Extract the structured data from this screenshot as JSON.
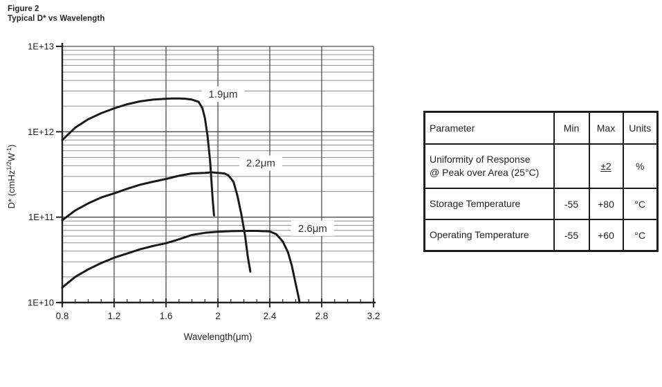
{
  "figure": {
    "title_line1": "Figure 2",
    "title_line2": "Typical D* vs Wavelength"
  },
  "chart_data": {
    "type": "line",
    "title": "Typical D* vs Wavelength",
    "xlabel": "Wavelength(μm)",
    "ylabel": "D* (cmHz^{1/2}W^{-1})",
    "xlim": [
      0.8,
      3.2
    ],
    "x_major_ticks": [
      {
        "v": 0.8,
        "label": "0.8"
      },
      {
        "v": 1.2,
        "label": "1.2"
      },
      {
        "v": 1.6,
        "label": "1.6"
      },
      {
        "v": 2.0,
        "label": "2"
      },
      {
        "v": 2.4,
        "label": "2.4"
      },
      {
        "v": 2.8,
        "label": "2.8"
      },
      {
        "v": 3.2,
        "label": "3.2"
      }
    ],
    "x_minor_step": 0.1,
    "y_scale": "log",
    "ylim_exp": [
      10,
      13
    ],
    "y_decades": [
      {
        "exp": 13,
        "label": "1E+13"
      },
      {
        "exp": 12,
        "label": "1E+12"
      },
      {
        "exp": 11,
        "label": "1E+11"
      },
      {
        "exp": 10,
        "label": "1E+10"
      }
    ],
    "grid": true,
    "legend_position": "inline-labels",
    "series": [
      {
        "name": "1.9μm",
        "points": [
          [
            0.8,
            800000000000.0
          ],
          [
            0.9,
            1120000000000.0
          ],
          [
            1.0,
            1400000000000.0
          ],
          [
            1.1,
            1650000000000.0
          ],
          [
            1.2,
            1880000000000.0
          ],
          [
            1.3,
            2100000000000.0
          ],
          [
            1.4,
            2270000000000.0
          ],
          [
            1.5,
            2380000000000.0
          ],
          [
            1.6,
            2440000000000.0
          ],
          [
            1.65,
            2450000000000.0
          ],
          [
            1.7,
            2450000000000.0
          ],
          [
            1.75,
            2440000000000.0
          ],
          [
            1.8,
            2380000000000.0
          ],
          [
            1.85,
            2250000000000.0
          ],
          [
            1.88,
            1900000000000.0
          ],
          [
            1.9,
            1450000000000.0
          ],
          [
            1.92,
            900000000000.0
          ],
          [
            1.94,
            450000000000.0
          ],
          [
            1.95,
            270000000000.0
          ],
          [
            1.96,
            160000000000.0
          ],
          [
            1.97,
            105000000000.0
          ]
        ]
      },
      {
        "name": "2.2μm",
        "points": [
          [
            0.8,
            92000000000.0
          ],
          [
            0.9,
            120000000000.0
          ],
          [
            1.0,
            145000000000.0
          ],
          [
            1.1,
            170000000000.0
          ],
          [
            1.2,
            190000000000.0
          ],
          [
            1.3,
            215000000000.0
          ],
          [
            1.4,
            240000000000.0
          ],
          [
            1.5,
            260000000000.0
          ],
          [
            1.6,
            280000000000.0
          ],
          [
            1.7,
            305000000000.0
          ],
          [
            1.8,
            325000000000.0
          ],
          [
            1.9,
            330000000000.0
          ],
          [
            1.95,
            335000000000.0
          ],
          [
            2.0,
            330000000000.0
          ],
          [
            2.05,
            325000000000.0
          ],
          [
            2.08,
            310000000000.0
          ],
          [
            2.12,
            260000000000.0
          ],
          [
            2.15,
            180000000000.0
          ],
          [
            2.18,
            110000000000.0
          ],
          [
            2.21,
            60000000000.0
          ],
          [
            2.23,
            35000000000.0
          ],
          [
            2.25,
            23000000000.0
          ]
        ]
      },
      {
        "name": "2.6μm",
        "points": [
          [
            0.8,
            15000000000.0
          ],
          [
            0.9,
            20000000000.0
          ],
          [
            1.0,
            24500000000.0
          ],
          [
            1.1,
            29000000000.0
          ],
          [
            1.2,
            33500000000.0
          ],
          [
            1.3,
            37500000000.0
          ],
          [
            1.4,
            42000000000.0
          ],
          [
            1.5,
            46000000000.0
          ],
          [
            1.6,
            49500000000.0
          ],
          [
            1.7,
            55000000000.0
          ],
          [
            1.8,
            62000000000.0
          ],
          [
            1.9,
            65500000000.0
          ],
          [
            2.0,
            67500000000.0
          ],
          [
            2.1,
            68500000000.0
          ],
          [
            2.2,
            69000000000.0
          ],
          [
            2.3,
            69000000000.0
          ],
          [
            2.4,
            68000000000.0
          ],
          [
            2.45,
            63000000000.0
          ],
          [
            2.5,
            52000000000.0
          ],
          [
            2.54,
            39000000000.0
          ],
          [
            2.57,
            27000000000.0
          ],
          [
            2.6,
            16500000000.0
          ],
          [
            2.62,
            12000000000.0
          ],
          [
            2.63,
            10000000000.0
          ]
        ]
      }
    ],
    "annotations": [
      {
        "text": "1.9μm",
        "x": 2.04,
        "y": 2760000000000.0
      },
      {
        "text": "2.2μm",
        "x": 2.33,
        "y": 430000000000.0
      },
      {
        "text": "2.6μm",
        "x": 2.73,
        "y": 74000000000.0
      }
    ]
  },
  "table": {
    "headers": [
      "Parameter",
      "Min",
      "Max",
      "Units"
    ],
    "rows": [
      {
        "parameter": "Uniformity of Response @ Peak over Area (25°C)",
        "min": "",
        "max": "±2",
        "units": "%"
      },
      {
        "parameter": "Storage Temperature",
        "min": "-55",
        "max": "+80",
        "units": "°C"
      },
      {
        "parameter": "Operating Temperature",
        "min": "-55",
        "max": "+60",
        "units": "°C"
      }
    ]
  },
  "colors": {
    "ink": "#231f20",
    "grid_major": "#4d4d4d",
    "grid_minor": "#8f8f8f",
    "curve": "#1a1a1a",
    "background": "#ffffff"
  }
}
